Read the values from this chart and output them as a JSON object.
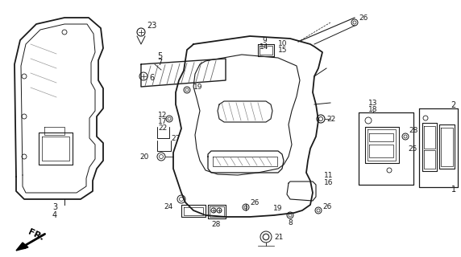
{
  "bg_color": "#ffffff",
  "line_color": "#1a1a1a",
  "gray_color": "#888888",
  "fig_w": 5.72,
  "fig_h": 3.2,
  "dpi": 100
}
